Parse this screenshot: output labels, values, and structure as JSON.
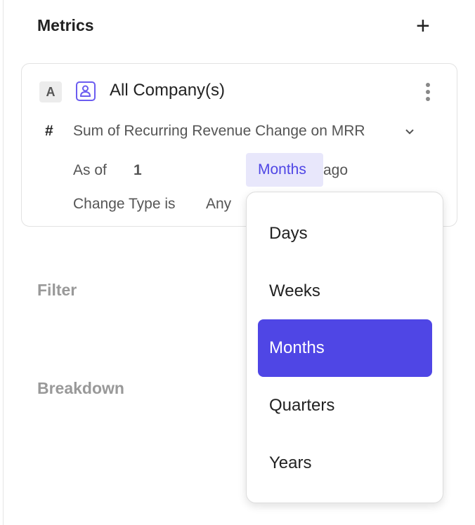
{
  "header": {
    "title": "Metrics",
    "add_icon": "plus-icon"
  },
  "metric": {
    "badge": "A",
    "entity_icon": "person-icon",
    "entity": "All Company(s)",
    "menu_icon": "more-vertical-icon",
    "hash": "#",
    "measure": "Sum of Recurring Revenue Change on MRR",
    "as_of_label": "As of",
    "as_of_value": "1",
    "unit": "Months",
    "ago": "ago",
    "change_type_label": "Change Type is",
    "change_type_value": "Any"
  },
  "dropdown": {
    "options": [
      "Days",
      "Weeks",
      "Months",
      "Quarters",
      "Years"
    ],
    "selected": "Months"
  },
  "sections": {
    "filter": "Filter",
    "breakdown": "Breakdown"
  },
  "colors": {
    "accent": "#4f46e5",
    "accent_light": "#e8e7fb"
  }
}
